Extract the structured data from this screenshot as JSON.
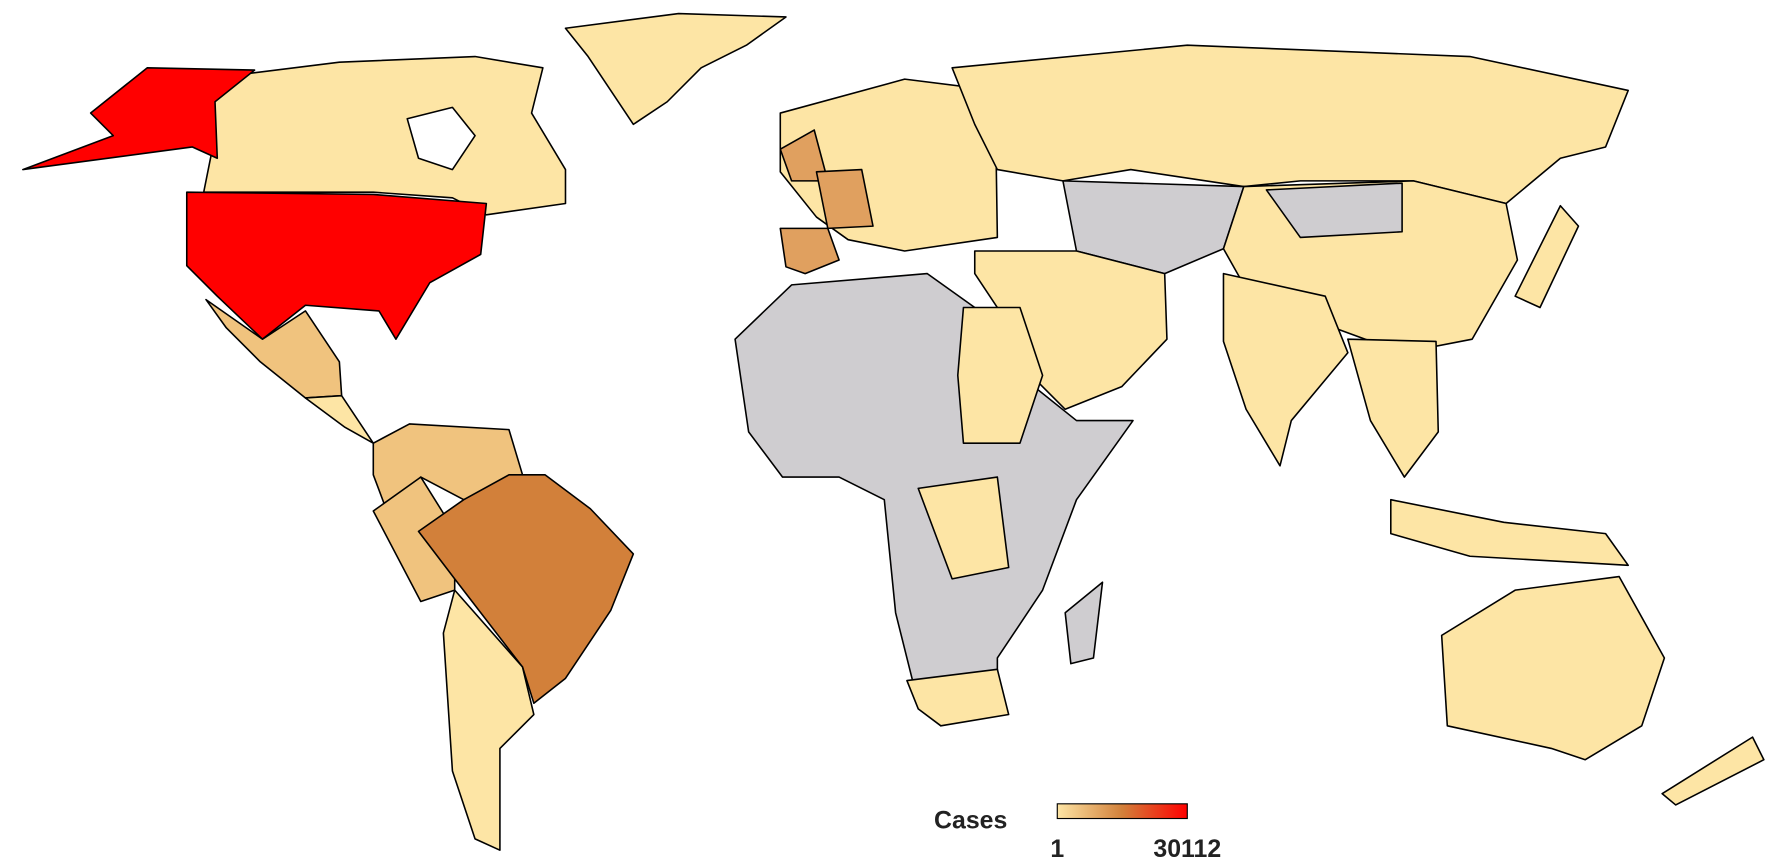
{
  "legend": {
    "title": "Cases",
    "min": 1,
    "max": 30112,
    "colors": [
      "#fde5a5",
      "#d2803a",
      "#ff0000"
    ]
  }
}
